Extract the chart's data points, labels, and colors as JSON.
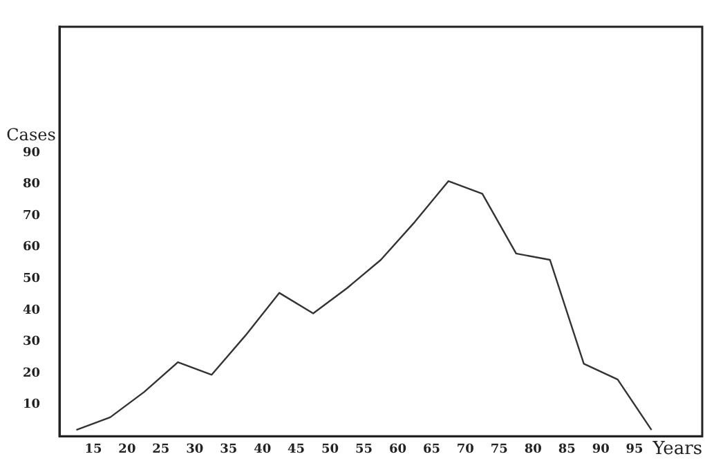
{
  "chart_data": {
    "type": "line",
    "x": [
      12.5,
      17.5,
      22.5,
      27.5,
      32.5,
      37.5,
      42.5,
      47.5,
      52.5,
      57.5,
      62.5,
      67.5,
      72.5,
      77.5,
      82.5,
      87.5,
      92.5,
      97.5
    ],
    "series": [
      {
        "color": "#333333",
        "values": [
          2,
          6,
          14,
          23.5,
          19.5,
          32,
          45.5,
          39,
          47,
          56,
          68,
          81,
          77,
          58,
          56,
          23,
          18,
          2
        ]
      }
    ],
    "xlabel": "Years",
    "ylabel": "Cases",
    "xlim": [
      10,
      105
    ],
    "xticks": [
      15,
      20,
      25,
      30,
      35,
      40,
      45,
      50,
      55,
      60,
      65,
      70,
      75,
      80,
      85,
      90,
      95
    ],
    "ylim": [
      0,
      130
    ],
    "yticks": [
      10,
      20,
      30,
      40,
      50,
      60,
      70,
      80,
      90
    ],
    "grid": false,
    "legend": false,
    "marker": "none",
    "line_style": "solid"
  }
}
